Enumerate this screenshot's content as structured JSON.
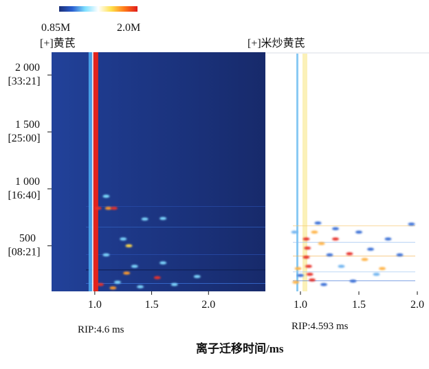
{
  "chart_data": [
    {
      "type": "heatmap",
      "panel_title": "[+]黄芪",
      "rip_label": "RIP:4.6 ms",
      "background_color": "#1b2f78",
      "x_ticks": [
        "1.0",
        "1.5",
        "2.0"
      ],
      "x_tick_values": [
        1.0,
        1.5,
        2.0
      ],
      "xlim": [
        0.62,
        2.5
      ],
      "y_ticks": [
        {
          "value": 2000,
          "label": "2 000",
          "time": "[33:21]"
        },
        {
          "value": 1500,
          "label": "1 500",
          "time": "[25:00]"
        },
        {
          "value": 1000,
          "label": "1 000",
          "time": "[16:40]"
        },
        {
          "value": 500,
          "label": "500",
          "time": "[08:21]"
        }
      ],
      "ylim": [
        100,
        2200
      ],
      "rip_drift_time": 1.0,
      "spots": [
        {
          "x": 1.03,
          "y": 830,
          "color": "#e8302a"
        },
        {
          "x": 1.12,
          "y": 830,
          "color": "#ff9a2a"
        },
        {
          "x": 1.17,
          "y": 830,
          "color": "#e8302a"
        },
        {
          "x": 1.1,
          "y": 935,
          "color": "#7fe0ff"
        },
        {
          "x": 1.44,
          "y": 735,
          "color": "#7fd8ff"
        },
        {
          "x": 1.6,
          "y": 740,
          "color": "#7fd8ff"
        },
        {
          "x": 1.25,
          "y": 560,
          "color": "#7fd8ff"
        },
        {
          "x": 1.3,
          "y": 500,
          "color": "#ffd94a"
        },
        {
          "x": 1.1,
          "y": 420,
          "color": "#7fd8ff"
        },
        {
          "x": 1.28,
          "y": 260,
          "color": "#ff9a2a"
        },
        {
          "x": 1.55,
          "y": 220,
          "color": "#e8302a"
        },
        {
          "x": 1.05,
          "y": 160,
          "color": "#e8302a"
        },
        {
          "x": 1.16,
          "y": 130,
          "color": "#ff9a2a"
        },
        {
          "x": 1.2,
          "y": 180,
          "color": "#7fd8ff"
        },
        {
          "x": 1.4,
          "y": 140,
          "color": "#7fd8ff"
        },
        {
          "x": 1.7,
          "y": 160,
          "color": "#7fd8ff"
        },
        {
          "x": 1.9,
          "y": 230,
          "color": "#7fd8ff"
        },
        {
          "x": 1.35,
          "y": 320,
          "color": "#7fd8ff"
        },
        {
          "x": 1.6,
          "y": 350,
          "color": "#7fd8ff"
        }
      ]
    },
    {
      "type": "heatmap",
      "panel_title": "[+]米炒黄芪",
      "rip_label": "RIP:4.593 ms",
      "background_color": "#ffffff",
      "x_ticks": [
        "1.0",
        "1.5",
        "2.0"
      ],
      "x_tick_values": [
        1.0,
        1.5,
        2.0
      ],
      "xlim": [
        0.7,
        2.1
      ],
      "ylim": [
        100,
        2200
      ],
      "rip_drift_time": 1.0,
      "spots": [
        {
          "x": 1.05,
          "y": 560,
          "color": "#e8302a"
        },
        {
          "x": 1.06,
          "y": 480,
          "color": "#e8302a"
        },
        {
          "x": 1.05,
          "y": 400,
          "color": "#e8302a"
        },
        {
          "x": 1.07,
          "y": 320,
          "color": "#e8302a"
        },
        {
          "x": 1.08,
          "y": 250,
          "color": "#e8302a"
        },
        {
          "x": 1.1,
          "y": 200,
          "color": "#e8302a"
        },
        {
          "x": 1.12,
          "y": 620,
          "color": "#ffb347"
        },
        {
          "x": 1.18,
          "y": 520,
          "color": "#ffb347"
        },
        {
          "x": 1.3,
          "y": 560,
          "color": "#e8302a"
        },
        {
          "x": 1.42,
          "y": 430,
          "color": "#e8302a"
        },
        {
          "x": 1.55,
          "y": 380,
          "color": "#ffb347"
        },
        {
          "x": 1.7,
          "y": 300,
          "color": "#ffb347"
        },
        {
          "x": 0.98,
          "y": 300,
          "color": "#ffb347"
        },
        {
          "x": 0.96,
          "y": 180,
          "color": "#ffb347"
        },
        {
          "x": 1.15,
          "y": 700,
          "color": "#3b6fd6"
        },
        {
          "x": 1.3,
          "y": 650,
          "color": "#3b6fd6"
        },
        {
          "x": 1.5,
          "y": 620,
          "color": "#3b6fd6"
        },
        {
          "x": 1.75,
          "y": 560,
          "color": "#3b6fd6"
        },
        {
          "x": 1.95,
          "y": 690,
          "color": "#3b6fd6"
        },
        {
          "x": 1.25,
          "y": 420,
          "color": "#3b6fd6"
        },
        {
          "x": 1.6,
          "y": 470,
          "color": "#3b6fd6"
        },
        {
          "x": 1.85,
          "y": 420,
          "color": "#3b6fd6"
        },
        {
          "x": 1.0,
          "y": 240,
          "color": "#3b6fd6"
        },
        {
          "x": 1.2,
          "y": 160,
          "color": "#3b6fd6"
        },
        {
          "x": 1.45,
          "y": 190,
          "color": "#3b6fd6"
        },
        {
          "x": 0.95,
          "y": 620,
          "color": "#6fb4f0"
        },
        {
          "x": 1.65,
          "y": 250,
          "color": "#6fb4f0"
        },
        {
          "x": 1.35,
          "y": 320,
          "color": "#6fb4f0"
        }
      ]
    }
  ],
  "colorbar": {
    "min_label": "0.85M",
    "max_label": "2.0M",
    "stops": [
      "#1b2f78",
      "#2a5fd0",
      "#7fe0ff",
      "#ffffff",
      "#ffe04a",
      "#ff7a1a",
      "#e01b1b"
    ]
  },
  "xlabel": "离子迁移时间/ms"
}
